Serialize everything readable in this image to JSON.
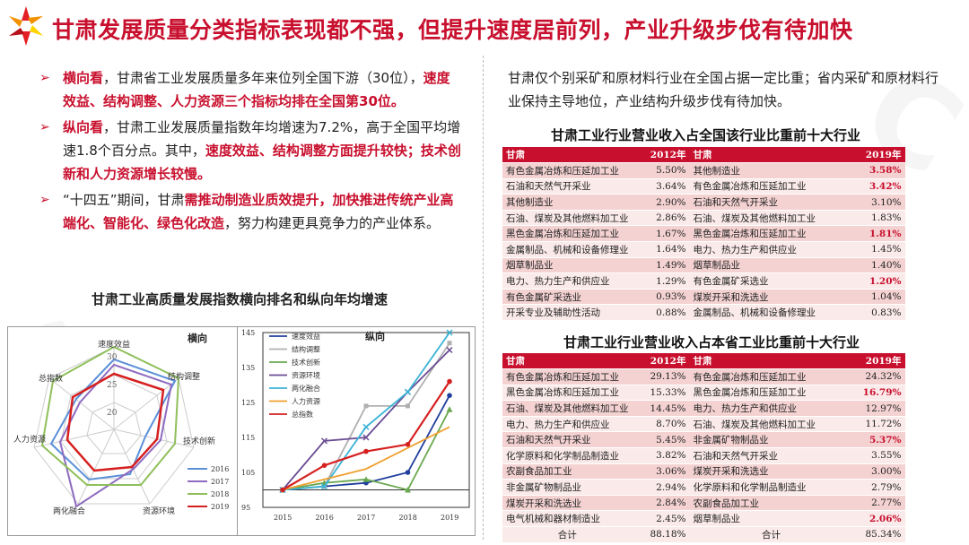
{
  "title": "甘肃发展质量分类指标表现都不强，但提升速度居前列，产业升级步伐有待加快",
  "colors": {
    "accent_red": "#c8102e",
    "row_dark": "#f4d2d2",
    "row_light": "#fbeaea"
  },
  "left_bullets": [
    {
      "p1": "横向看",
      "p2": "，甘肃省工业发展质量多年来位列全国下游（30位），",
      "p3": "速度效益、结构调整、人力资源三个指标均排在全国第30位。",
      "p4": ""
    },
    {
      "p1": "纵向看",
      "p2": "，甘肃工业发展质量指数年均增速为7.2%，高于全国平均增速1.8个百分点。其中，",
      "p3": "速度效益、结构调整方面提升较快；技术创新和人力资源增长较慢。",
      "p4": ""
    },
    {
      "p1": "",
      "p2": "“十四五”期间，甘肃",
      "p3": "需推动制造业质效提升，加快推进传统产业高端化、智能化、绿色化改造",
      "p4": "，努力构建更具竞争力的产业体系。"
    }
  ],
  "left_chart_title": "甘肃工业高质量发展指数横向排名和纵向年均增速",
  "radar_chart": {
    "title": "横向",
    "axes": [
      "速度效益",
      "结构调整",
      "技术创新",
      "资源环境",
      "两化融合",
      "人力资源",
      "总指数"
    ],
    "tick_labels": [
      "20",
      "25",
      "30"
    ],
    "legend": [
      "2016",
      "2017",
      "2018",
      "2019"
    ]
  },
  "chart_data": {
    "type": "line",
    "title": "纵向",
    "x": [
      "2015",
      "2016",
      "2017",
      "2018",
      "2019"
    ],
    "ylim": [
      95,
      145
    ],
    "yticks": [
      "95",
      "105",
      "115",
      "125",
      "135",
      "145"
    ],
    "series": [
      {
        "name": "速度效益",
        "color": "#1f3f9c",
        "marker": "circle",
        "values": [
          100,
          101,
          102,
          105,
          127
        ]
      },
      {
        "name": "结构调整",
        "color": "#b0b0b0",
        "marker": "square",
        "values": [
          100,
          101,
          124,
          124,
          142
        ]
      },
      {
        "name": "技术创新",
        "color": "#6aa84f",
        "marker": "triangle",
        "values": [
          100,
          102,
          103,
          100,
          123
        ]
      },
      {
        "name": "资源环境",
        "color": "#6a4c93",
        "marker": "x",
        "values": [
          100,
          114,
          115,
          128,
          140
        ]
      },
      {
        "name": "两化融合",
        "color": "#3bb3d6",
        "marker": "x",
        "values": [
          100,
          101,
          118,
          128,
          145
        ]
      },
      {
        "name": "人力资源",
        "color": "#f0a030",
        "marker": "none",
        "values": [
          100,
          103,
          106,
          112,
          118
        ]
      },
      {
        "name": "总指数",
        "color": "#d62020",
        "marker": "circle",
        "values": [
          100,
          107,
          111,
          113,
          131
        ]
      }
    ]
  },
  "right_intro": "甘肃仅个别采矿和原材料行业在全国占据一定比重；省内采矿和原材料行业保持主导地位，产业结构升级步伐有待加快。",
  "table1": {
    "title": "甘肃工业行业营业收入占全国该行业比重前十大行业",
    "header": [
      "甘肃",
      "2012年",
      "甘肃",
      "2019年"
    ],
    "rows": [
      [
        "有色金属冶炼和压延加工业",
        "5.50%",
        "其他制造业",
        "3.58%"
      ],
      [
        "石油和天然气开采业",
        "3.64%",
        "有色金属冶炼和压延加工业",
        "3.42%"
      ],
      [
        "其他制造业",
        "2.90%",
        "石油和天然气开采业",
        "3.10%"
      ],
      [
        "石油、煤炭及其他燃料加工业",
        "2.86%",
        "石油、煤炭及其他燃料加工业",
        "1.83%"
      ],
      [
        "黑色金属冶炼和压延加工业",
        "1.67%",
        "黑色金属冶炼和压延加工业",
        "1.81%"
      ],
      [
        "金属制品、机械和设备修理业",
        "1.64%",
        "电力、热力生产和供应业",
        "1.45%"
      ],
      [
        "烟草制品业",
        "1.49%",
        "烟草制品业",
        "1.40%"
      ],
      [
        "电力、热力生产和供应业",
        "1.29%",
        "有色金属矿采选业",
        "1.20%"
      ],
      [
        "有色金属矿采选业",
        "0.93%",
        "煤炭开采和洗选业",
        "1.04%"
      ],
      [
        "开采专业及辅助性活动",
        "0.88%",
        "金属制品、机械和设备修理业",
        "0.83%"
      ]
    ],
    "highlight_2019": [
      0,
      1,
      4,
      7
    ]
  },
  "table2": {
    "title": "甘肃工业行业营业收入占本省工业比重前十大行业",
    "header": [
      "甘肃",
      "2012年",
      "甘肃",
      "2019年"
    ],
    "rows": [
      [
        "有色金属冶炼和压延加工业",
        "29.13%",
        "有色金属冶炼和压延加工业",
        "24.32%"
      ],
      [
        "黑色金属冶炼和压延加工业",
        "15.33%",
        "黑色金属冶炼和压延加工业",
        "16.79%"
      ],
      [
        "石油、煤炭及其他燃料加工业",
        "14.45%",
        "电力、热力生产和供应业",
        "12.97%"
      ],
      [
        "电力、热力生产和供应业",
        "8.70%",
        "石油、煤炭及其他燃料加工业",
        "11.72%"
      ],
      [
        "石油和天然气开采业",
        "5.45%",
        "非金属矿物制品业",
        "5.37%"
      ],
      [
        "化学原料和化学制品制造业",
        "3.82%",
        "石油和天然气开采业",
        "3.55%"
      ],
      [
        "农副食品加工业",
        "3.06%",
        "煤炭开采和洗选业",
        "3.00%"
      ],
      [
        "非金属矿物制品业",
        "2.94%",
        "化学原料和化学制品制造业",
        "2.79%"
      ],
      [
        "煤炭开采和洗选业",
        "2.84%",
        "农副食品加工业",
        "2.77%"
      ],
      [
        "电气机械和器材制造业",
        "2.45%",
        "烟草制品业",
        "2.06%"
      ]
    ],
    "total": [
      "合计",
      "88.18%",
      "合计",
      "85.34%"
    ],
    "highlight_2019": [
      1,
      4,
      9
    ]
  }
}
